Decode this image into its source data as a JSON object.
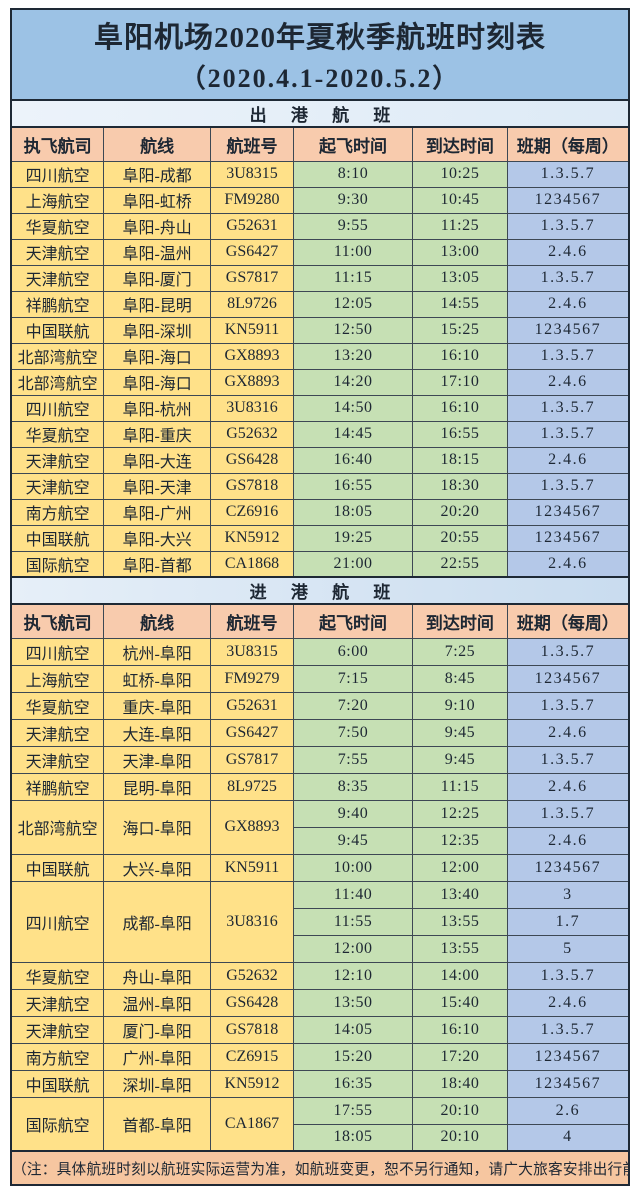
{
  "title": {
    "line1": "阜阳机场2020年夏秋季航班时刻表",
    "line2": "（2020.4.1-2020.5.2）"
  },
  "sections": {
    "departures": {
      "label": "出 港 航 班",
      "headers": [
        "执飞航司",
        "航线",
        "航班号",
        "起飞时间",
        "到达时间",
        "班期（每周）"
      ],
      "rows": [
        {
          "airline": "四川航空",
          "route": "阜阳-成都",
          "flight": "3U8315",
          "times": [
            {
              "dep": "8:10",
              "arr": "10:25",
              "days": "1.3.5.7"
            }
          ]
        },
        {
          "airline": "上海航空",
          "route": "阜阳-虹桥",
          "flight": "FM9280",
          "times": [
            {
              "dep": "9:30",
              "arr": "10:45",
              "days": "1234567"
            }
          ]
        },
        {
          "airline": "华夏航空",
          "route": "阜阳-舟山",
          "flight": "G52631",
          "times": [
            {
              "dep": "9:55",
              "arr": "11:25",
              "days": "1.3.5.7"
            }
          ]
        },
        {
          "airline": "天津航空",
          "route": "阜阳-温州",
          "flight": "GS6427",
          "times": [
            {
              "dep": "11:00",
              "arr": "13:00",
              "days": "2.4.6"
            }
          ]
        },
        {
          "airline": "天津航空",
          "route": "阜阳-厦门",
          "flight": "GS7817",
          "times": [
            {
              "dep": "11:15",
              "arr": "13:05",
              "days": "1.3.5.7"
            }
          ]
        },
        {
          "airline": "祥鹏航空",
          "route": "阜阳-昆明",
          "flight": "8L9726",
          "times": [
            {
              "dep": "12:05",
              "arr": "14:55",
              "days": "2.4.6"
            }
          ]
        },
        {
          "airline": "中国联航",
          "route": "阜阳-深圳",
          "flight": "KN5911",
          "times": [
            {
              "dep": "12:50",
              "arr": "15:25",
              "days": "1234567"
            }
          ]
        },
        {
          "airline": "北部湾航空",
          "route": "阜阳-海口",
          "flight": "GX8893",
          "times": [
            {
              "dep": "13:20",
              "arr": "16:10",
              "days": "1.3.5.7"
            }
          ]
        },
        {
          "airline": "北部湾航空",
          "route": "阜阳-海口",
          "flight": "GX8893",
          "times": [
            {
              "dep": "14:20",
              "arr": "17:10",
              "days": "2.4.6"
            }
          ]
        },
        {
          "airline": "四川航空",
          "route": "阜阳-杭州",
          "flight": "3U8316",
          "times": [
            {
              "dep": "14:50",
              "arr": "16:10",
              "days": "1.3.5.7"
            }
          ]
        },
        {
          "airline": "华夏航空",
          "route": "阜阳-重庆",
          "flight": "G52632",
          "times": [
            {
              "dep": "14:45",
              "arr": "16:55",
              "days": "1.3.5.7"
            }
          ]
        },
        {
          "airline": "天津航空",
          "route": "阜阳-大连",
          "flight": "GS6428",
          "times": [
            {
              "dep": "16:40",
              "arr": "18:15",
              "days": "2.4.6"
            }
          ]
        },
        {
          "airline": "天津航空",
          "route": "阜阳-天津",
          "flight": "GS7818",
          "times": [
            {
              "dep": "16:55",
              "arr": "18:30",
              "days": "1.3.5.7"
            }
          ]
        },
        {
          "airline": "南方航空",
          "route": "阜阳-广州",
          "flight": "CZ6916",
          "times": [
            {
              "dep": "18:05",
              "arr": "20:20",
              "days": "1234567"
            }
          ]
        },
        {
          "airline": "中国联航",
          "route": "阜阳-大兴",
          "flight": "KN5912",
          "times": [
            {
              "dep": "19:25",
              "arr": "20:55",
              "days": "1234567"
            }
          ]
        },
        {
          "airline": "国际航空",
          "route": "阜阳-首都",
          "flight": "CA1868",
          "times": [
            {
              "dep": "21:00",
              "arr": "22:55",
              "days": "2.4.6"
            }
          ]
        }
      ]
    },
    "arrivals": {
      "label": "进 港 航 班",
      "headers": [
        "执飞航司",
        "航线",
        "航班号",
        "起飞时间",
        "到达时间",
        "班期（每周）"
      ],
      "rows": [
        {
          "airline": "四川航空",
          "route": "杭州-阜阳",
          "flight": "3U8315",
          "times": [
            {
              "dep": "6:00",
              "arr": "7:25",
              "days": "1.3.5.7"
            }
          ]
        },
        {
          "airline": "上海航空",
          "route": "虹桥-阜阳",
          "flight": "FM9279",
          "times": [
            {
              "dep": "7:15",
              "arr": "8:45",
              "days": "1234567"
            }
          ]
        },
        {
          "airline": "华夏航空",
          "route": "重庆-阜阳",
          "flight": "G52631",
          "times": [
            {
              "dep": "7:20",
              "arr": "9:10",
              "days": "1.3.5.7"
            }
          ]
        },
        {
          "airline": "天津航空",
          "route": "大连-阜阳",
          "flight": "GS6427",
          "times": [
            {
              "dep": "7:50",
              "arr": "9:45",
              "days": "2.4.6"
            }
          ]
        },
        {
          "airline": "天津航空",
          "route": "天津-阜阳",
          "flight": "GS7817",
          "times": [
            {
              "dep": "7:55",
              "arr": "9:45",
              "days": "1.3.5.7"
            }
          ]
        },
        {
          "airline": "祥鹏航空",
          "route": "昆明-阜阳",
          "flight": "8L9725",
          "times": [
            {
              "dep": "8:35",
              "arr": "11:15",
              "days": "2.4.6"
            }
          ]
        },
        {
          "airline": "北部湾航空",
          "route": "海口-阜阳",
          "flight": "GX8893",
          "times": [
            {
              "dep": "9:40",
              "arr": "12:25",
              "days": "1.3.5.7"
            },
            {
              "dep": "9:45",
              "arr": "12:35",
              "days": "2.4.6"
            }
          ]
        },
        {
          "airline": "中国联航",
          "route": "大兴-阜阳",
          "flight": "KN5911",
          "times": [
            {
              "dep": "10:00",
              "arr": "12:00",
              "days": "1234567"
            }
          ]
        },
        {
          "airline": "四川航空",
          "route": "成都-阜阳",
          "flight": "3U8316",
          "times": [
            {
              "dep": "11:40",
              "arr": "13:40",
              "days": "3"
            },
            {
              "dep": "11:55",
              "arr": "13:55",
              "days": "1.7"
            },
            {
              "dep": "12:00",
              "arr": "13:55",
              "days": "5"
            }
          ]
        },
        {
          "airline": "华夏航空",
          "route": "舟山-阜阳",
          "flight": "G52632",
          "times": [
            {
              "dep": "12:10",
              "arr": "14:00",
              "days": "1.3.5.7"
            }
          ]
        },
        {
          "airline": "天津航空",
          "route": "温州-阜阳",
          "flight": "GS6428",
          "times": [
            {
              "dep": "13:50",
              "arr": "15:40",
              "days": "2.4.6"
            }
          ]
        },
        {
          "airline": "天津航空",
          "route": "厦门-阜阳",
          "flight": "GS7818",
          "times": [
            {
              "dep": "14:05",
              "arr": "16:10",
              "days": "1.3.5.7"
            }
          ]
        },
        {
          "airline": "南方航空",
          "route": "广州-阜阳",
          "flight": "CZ6915",
          "times": [
            {
              "dep": "15:20",
              "arr": "17:20",
              "days": "1234567"
            }
          ]
        },
        {
          "airline": "中国联航",
          "route": "深圳-阜阳",
          "flight": "KN5912",
          "times": [
            {
              "dep": "16:35",
              "arr": "18:40",
              "days": "1234567"
            }
          ]
        },
        {
          "airline": "国际航空",
          "route": "首都-阜阳",
          "flight": "CA1867",
          "times": [
            {
              "dep": "17:55",
              "arr": "20:10",
              "days": "2.6"
            },
            {
              "dep": "18:05",
              "arr": "20:10",
              "days": "4"
            }
          ]
        }
      ]
    }
  },
  "note": "（注：具体航班时刻以航班实际运营为准，如航班变更，恕不另行通知，请广大旅客安排出行前查询）",
  "colors": {
    "title_bg": "#9CC2E5",
    "section_dep_bg": "#DDEAF6",
    "section_arr_bg": "#C9DCEF",
    "header_bg": "#F8CBAD",
    "cell_yellow": "#FFE189",
    "cell_green": "#C6E0B4",
    "cell_blue": "#B4C8E8",
    "note_bg": "#F6C6A0",
    "border": "#3d4854",
    "outer_border": "#1e2935",
    "text": "#1d2733",
    "page_bg": "#ffffff"
  }
}
